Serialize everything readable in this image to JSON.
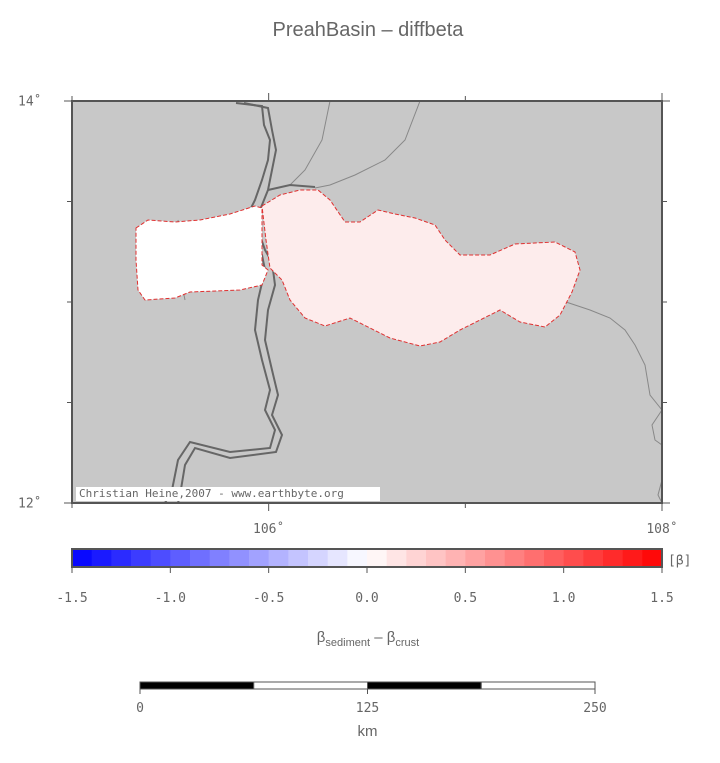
{
  "map": {
    "title": "PreahBasin – diffbeta",
    "lonlim": [
      105,
      108
    ],
    "latlim": [
      12,
      14
    ],
    "lat_ticks": [
      {
        "value": 14,
        "label": "14˚"
      },
      {
        "value": 12,
        "label": "12˚"
      }
    ],
    "lat_minor_ticks": [
      12.5,
      13,
      13.5
    ],
    "lon_ticks": [
      {
        "value": 106,
        "label": "106˚"
      },
      {
        "value": 108,
        "label": "108˚"
      }
    ],
    "lon_minor_ticks": [
      105,
      107
    ],
    "credit": "Christian Heine,2007 - www.earthbyte.org",
    "colorbar": {
      "range": [
        -1.5,
        1.5
      ],
      "steps": 30,
      "colors": [
        "#0000ff",
        "#ffffff",
        "#ff0000"
      ],
      "unit": "[β]",
      "ticks": [
        -1.5,
        {
          "value": -1.0,
          "label": "-1.0"
        },
        -0.5,
        {
          "value": 0.0,
          "label": "0.0"
        },
        0.5,
        {
          "value": 1.0,
          "label": "1.0"
        },
        1.5
      ],
      "label": {
        "main1": "β",
        "sub1": "sediment",
        "sep": " – ",
        "main2": "β",
        "sub2": "crust"
      }
    },
    "scalebar": {
      "range": [
        0,
        250
      ],
      "divisions": 4,
      "ticks": [
        0,
        125,
        250
      ],
      "unit": "km"
    }
  }
}
